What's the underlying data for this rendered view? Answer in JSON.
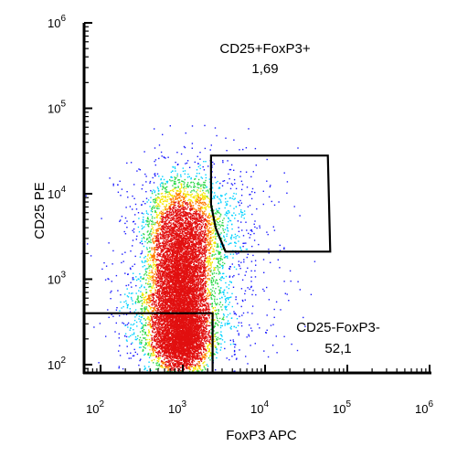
{
  "chart_data": {
    "type": "scatter",
    "subtype": "flow-cytometry-density-dot-plot",
    "xlabel": "FoxP3 APC",
    "ylabel": "CD25 PE",
    "xscale": "log",
    "yscale": "log",
    "xlim": [
      63,
      1000000
    ],
    "ylim": [
      80,
      1000000
    ],
    "x_tick_labels": [
      {
        "value": 100,
        "base": "10",
        "exp": "2"
      },
      {
        "value": 1000,
        "base": "10",
        "exp": "3"
      },
      {
        "value": 10000,
        "base": "10",
        "exp": "4"
      },
      {
        "value": 100000,
        "base": "10",
        "exp": "5"
      },
      {
        "value": 1000000,
        "base": "10",
        "exp": "6"
      }
    ],
    "y_tick_labels": [
      {
        "value": 100,
        "base": "10",
        "exp": "2"
      },
      {
        "value": 1000,
        "base": "10",
        "exp": "3"
      },
      {
        "value": 10000,
        "base": "10",
        "exp": "4"
      },
      {
        "value": 100000,
        "base": "10",
        "exp": "5"
      },
      {
        "value": 1000000,
        "base": "10",
        "exp": "6"
      }
    ],
    "gates": [
      {
        "name": "CD25+FoxP3+",
        "value": "1,69",
        "polygon": [
          [
            2200,
            28000
          ],
          [
            58000,
            28000
          ],
          [
            62000,
            2100
          ],
          [
            3300,
            2100
          ],
          [
            2500,
            4000
          ],
          [
            2200,
            7500
          ]
        ]
      },
      {
        "name": "CD25-FoxP3-",
        "value": "52,1",
        "polygon": [
          [
            63,
            400
          ],
          [
            2300,
            400
          ],
          [
            2300,
            80
          ],
          [
            63,
            80
          ]
        ]
      }
    ],
    "density_clusters": [
      {
        "x": 960,
        "y": 190,
        "count": 2600,
        "sx": 0.15,
        "sy": 0.17
      },
      {
        "x": 930,
        "y": 800,
        "count": 3800,
        "sx": 0.16,
        "sy": 0.33
      },
      {
        "x": 1000,
        "y": 3500,
        "count": 2200,
        "sx": 0.22,
        "sy": 0.3
      },
      {
        "x": 850,
        "y": 350,
        "count": 2200,
        "sx": 0.28,
        "sy": 0.32
      },
      {
        "x": 1400,
        "y": 5000,
        "count": 900,
        "sx": 0.4,
        "sy": 0.4
      },
      {
        "x": 1700,
        "y": 700,
        "count": 500,
        "sx": 0.55,
        "sy": 0.55
      }
    ],
    "colors": {
      "low": "#1a1aff",
      "mid": "#00d2ff",
      "mid2": "#2fd84a",
      "high_mid": "#f5e600",
      "high": "#ff7a00",
      "peak": "#e11010"
    },
    "grid": false,
    "legend": "none"
  }
}
